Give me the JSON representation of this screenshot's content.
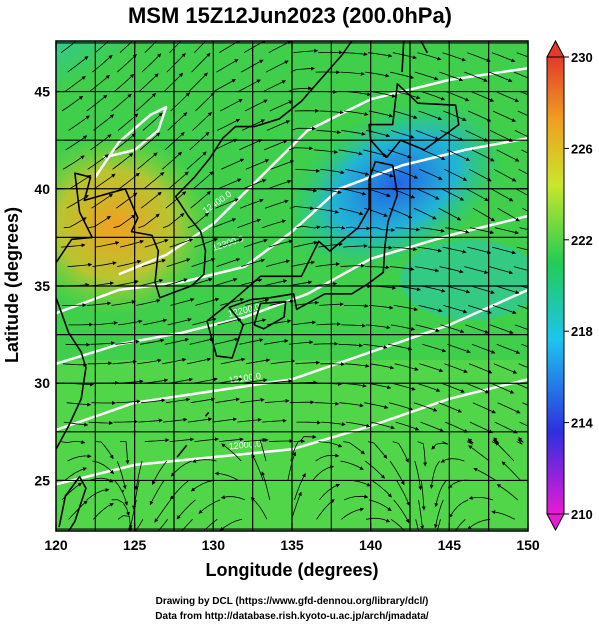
{
  "title": "MSM 15Z12Jun2023 (200.0hPa)",
  "x_axis": {
    "label": "Longitude (degrees)",
    "min": 120,
    "max": 150,
    "ticks": [
      120,
      125,
      130,
      135,
      140,
      145,
      150
    ]
  },
  "y_axis": {
    "label": "Latitude  (degrees)",
    "min": 22.4,
    "max": 47.6,
    "ticks": [
      25,
      30,
      35,
      40,
      45
    ]
  },
  "colorbar": {
    "min": 210,
    "max": 230,
    "ticks": [
      210,
      214,
      218,
      222,
      226,
      230
    ],
    "colors": [
      "#e81ad6",
      "#2e2fe0",
      "#1cc4f0",
      "#22cc55",
      "#c9e62a",
      "#f0a020",
      "#e33a2a"
    ]
  },
  "contour_labels": [
    "12000.0",
    "12100.0",
    "12200.0",
    "12300.0",
    "12400.0"
  ],
  "credits": {
    "line1": "Drawing by DCL (https://www.gfd-dennou.org/library/dcl/)",
    "line2": "Data from http://database.rish.kyoto-u.ac.jp/arch/jmadata/"
  }
}
